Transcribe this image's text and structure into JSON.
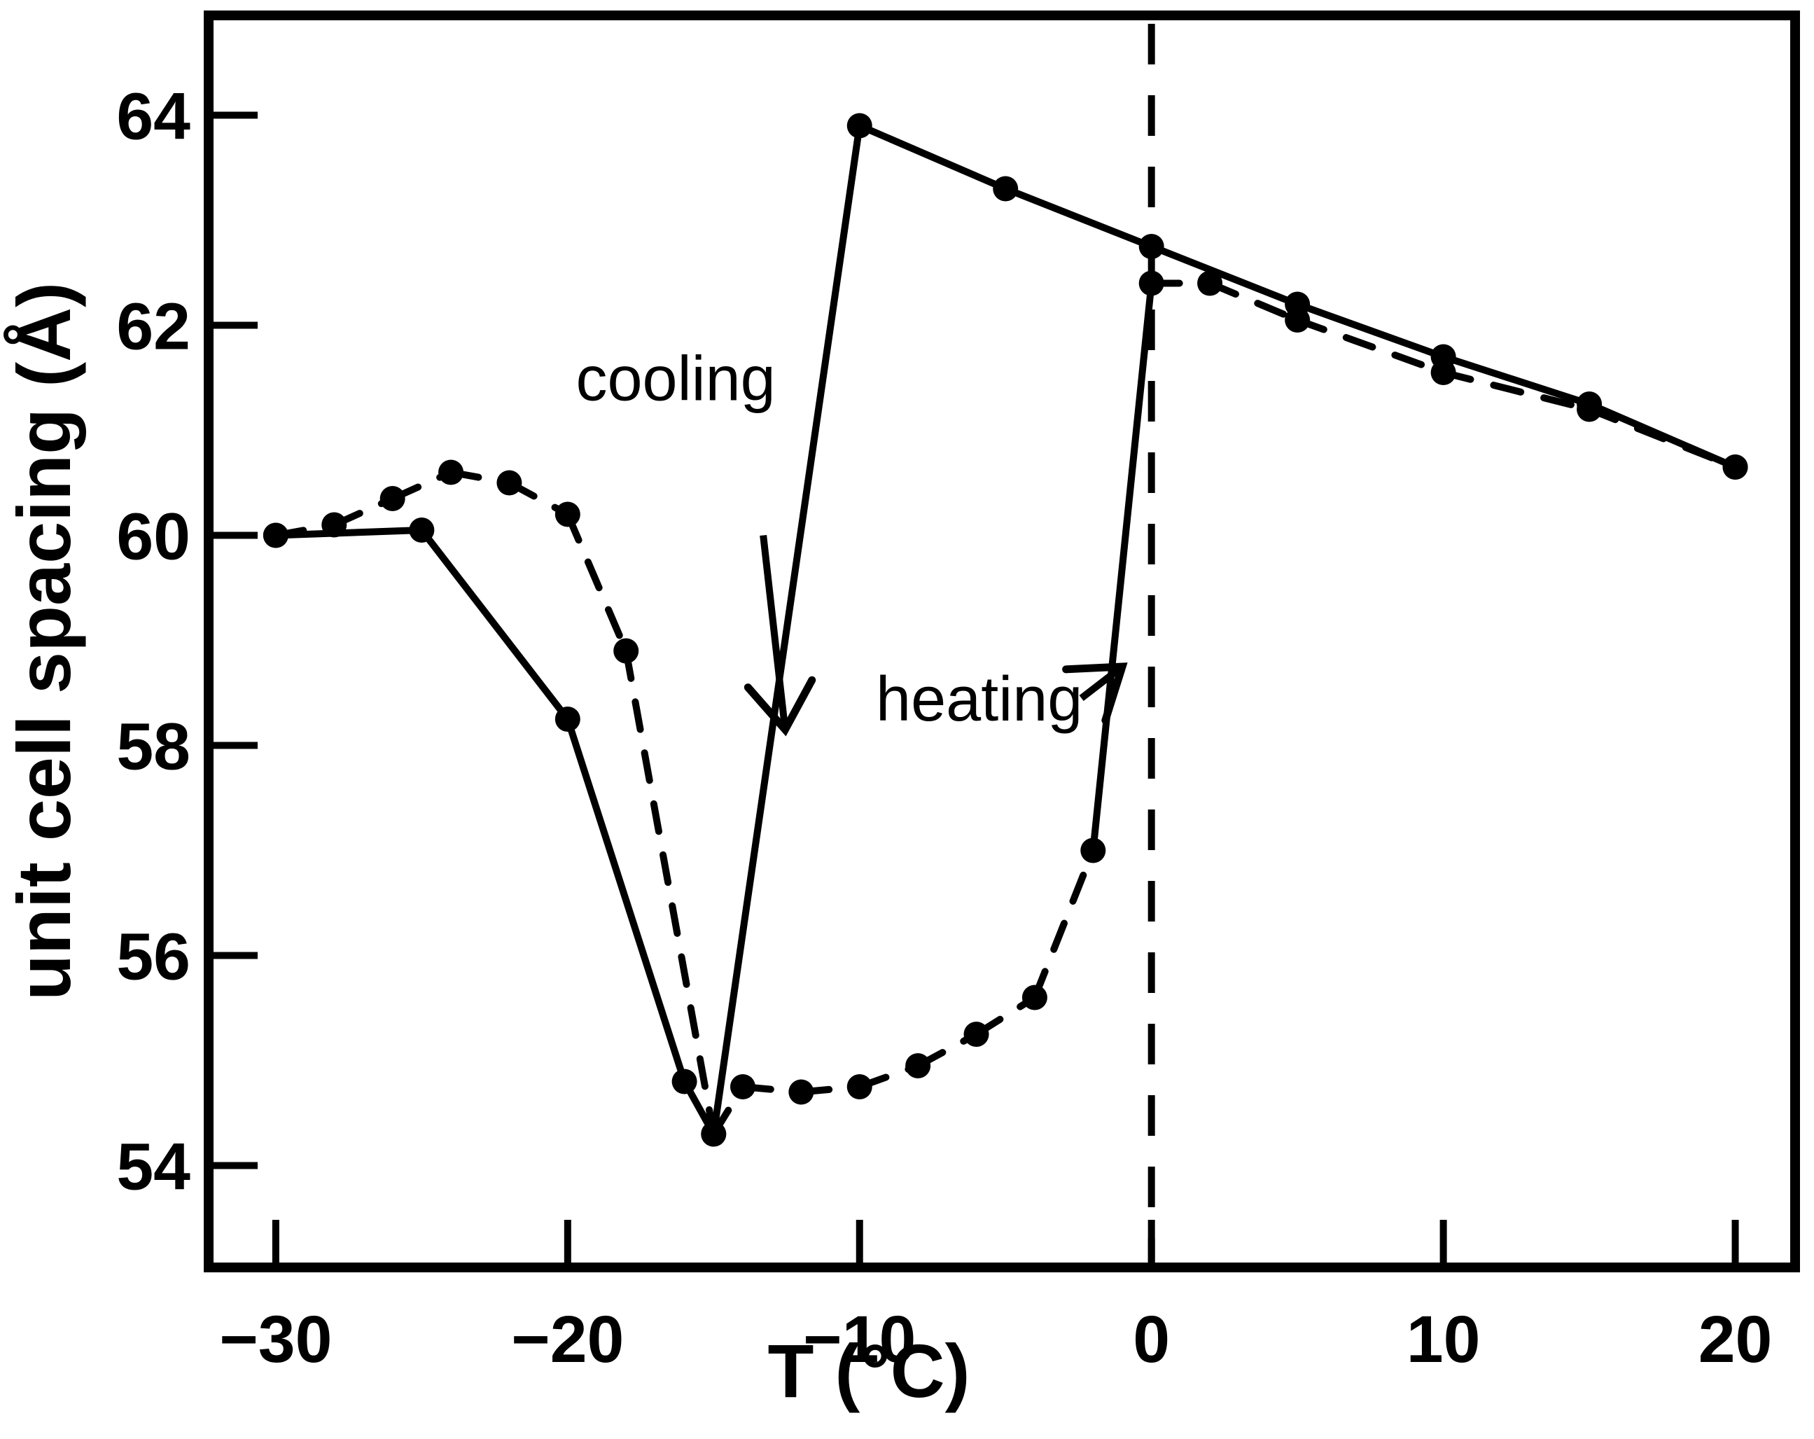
{
  "figure": {
    "background": "#ffffff",
    "ink": "#000000"
  },
  "chart_data": {
    "type": "line",
    "title": "",
    "xlabel": "T (°C)",
    "ylabel": "unit cell spacing (Å)",
    "xlim": [
      -32.3,
      22.05
    ],
    "ylim": [
      53.03,
      64.95
    ],
    "x_ticks": [
      "-30",
      "-20",
      "-10",
      "0",
      "10",
      "20"
    ],
    "x_tick_values": [
      -30,
      -20,
      -10,
      0,
      10,
      20
    ],
    "y_ticks": [
      "54",
      "56",
      "58",
      "60",
      "62",
      "64"
    ],
    "y_tick_values": [
      54,
      56,
      58,
      60,
      62,
      64
    ],
    "grid": false,
    "legend": "none",
    "reference_line": {
      "axis": "x",
      "value": 0,
      "style": "dashed"
    },
    "series": [
      {
        "name": "cooling",
        "marker": "filled-circle",
        "line": "solid",
        "points": [
          [
            20,
            60.65
          ],
          [
            15,
            61.25
          ],
          [
            10,
            61.7
          ],
          [
            5,
            62.2
          ],
          [
            0,
            62.75
          ],
          [
            -5,
            63.3
          ],
          [
            -10,
            63.9
          ],
          [
            -15,
            54.3
          ],
          [
            -16,
            54.8
          ],
          [
            -20,
            58.25
          ],
          [
            -25,
            60.05
          ],
          [
            -30,
            60.0
          ]
        ]
      },
      {
        "name": "heating",
        "marker": "filled-circle",
        "line": "dashed",
        "solid_segments": [
          [
            -2,
            0
          ]
        ],
        "points": [
          [
            -30,
            60.0
          ],
          [
            -28,
            60.1
          ],
          [
            -26,
            60.35
          ],
          [
            -24,
            60.6
          ],
          [
            -22,
            60.5
          ],
          [
            -20,
            60.2
          ],
          [
            -18,
            58.9
          ],
          [
            -15,
            54.3
          ],
          [
            -14,
            54.75
          ],
          [
            -12,
            54.7
          ],
          [
            -10,
            54.75
          ],
          [
            -8,
            54.95
          ],
          [
            -6,
            55.25
          ],
          [
            -4,
            55.6
          ],
          [
            -2,
            57.0
          ],
          [
            0,
            62.4
          ],
          [
            2,
            62.4
          ],
          [
            5,
            62.05
          ],
          [
            10,
            61.55
          ],
          [
            15,
            61.2
          ],
          [
            20,
            60.65
          ]
        ]
      }
    ],
    "annotations": [
      {
        "text": "cooling",
        "x": -16.3,
        "y": 61.5,
        "arrow": {
          "x1": -13.3,
          "y1": 60.0,
          "x2": -12.55,
          "y2": 58.15
        }
      },
      {
        "text": "heating",
        "x": -5.9,
        "y": 58.45,
        "arrow": {
          "x1": -2.4,
          "y1": 58.45,
          "x2": -1.0,
          "y2": 58.75
        }
      }
    ]
  }
}
